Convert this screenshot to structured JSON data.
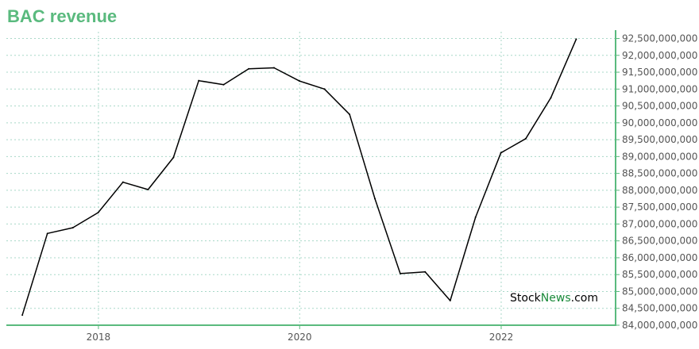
{
  "chart_data": {
    "type": "line",
    "title": "BAC revenue",
    "xlabel": "",
    "ylabel": "",
    "x_tick_labels": [
      "2018",
      "2020",
      "2022"
    ],
    "y_tick_labels": [
      "84,000,000,000",
      "84,500,000,000",
      "85,000,000,000",
      "85,500,000,000",
      "86,000,000,000",
      "86,500,000,000",
      "87,000,000,000",
      "87,500,000,000",
      "88,000,000,000",
      "88,500,000,000",
      "89,000,000,000",
      "89,500,000,000",
      "90,000,000,000",
      "90,500,000,000",
      "91,000,000,000",
      "91,500,000,000",
      "92,000,000,000",
      "92,500,000,000"
    ],
    "ylim": [
      84000000000,
      92700000000
    ],
    "xlim": [
      "2017-02-01",
      "2023-02-20"
    ],
    "grid": true,
    "legend": "none",
    "series": [
      {
        "x": [
          "2017-03-31",
          "2017-06-30",
          "2017-09-30",
          "2017-12-31",
          "2018-03-31",
          "2018-06-30",
          "2018-09-30",
          "2018-12-31",
          "2019-03-31",
          "2019-06-30",
          "2019-09-30",
          "2019-12-31",
          "2020-03-31",
          "2020-06-30",
          "2020-09-30",
          "2020-12-31",
          "2021-03-31",
          "2021-06-30",
          "2021-09-30",
          "2021-12-31",
          "2022-03-31",
          "2022-06-30",
          "2022-09-30"
        ],
        "values": [
          84300000000,
          86720000000,
          86890000000,
          87340000000,
          88240000000,
          88020000000,
          88970000000,
          91250000000,
          91130000000,
          91600000000,
          91630000000,
          91240000000,
          91000000000,
          90250000000,
          87750000000,
          85530000000,
          85580000000,
          84730000000,
          87200000000,
          89110000000,
          89530000000,
          90740000000,
          92480000000
        ]
      }
    ],
    "colors": {
      "title": "#5aba7e",
      "line": "#000000",
      "axis": "#5aba7e",
      "grid": "#a8d8c8",
      "label": "#555555"
    }
  },
  "watermark": {
    "part1": "Stock",
    "part2": "News",
    "part3": ".com",
    "color_dark": "#000000",
    "color_green": "#1a8a3a"
  }
}
